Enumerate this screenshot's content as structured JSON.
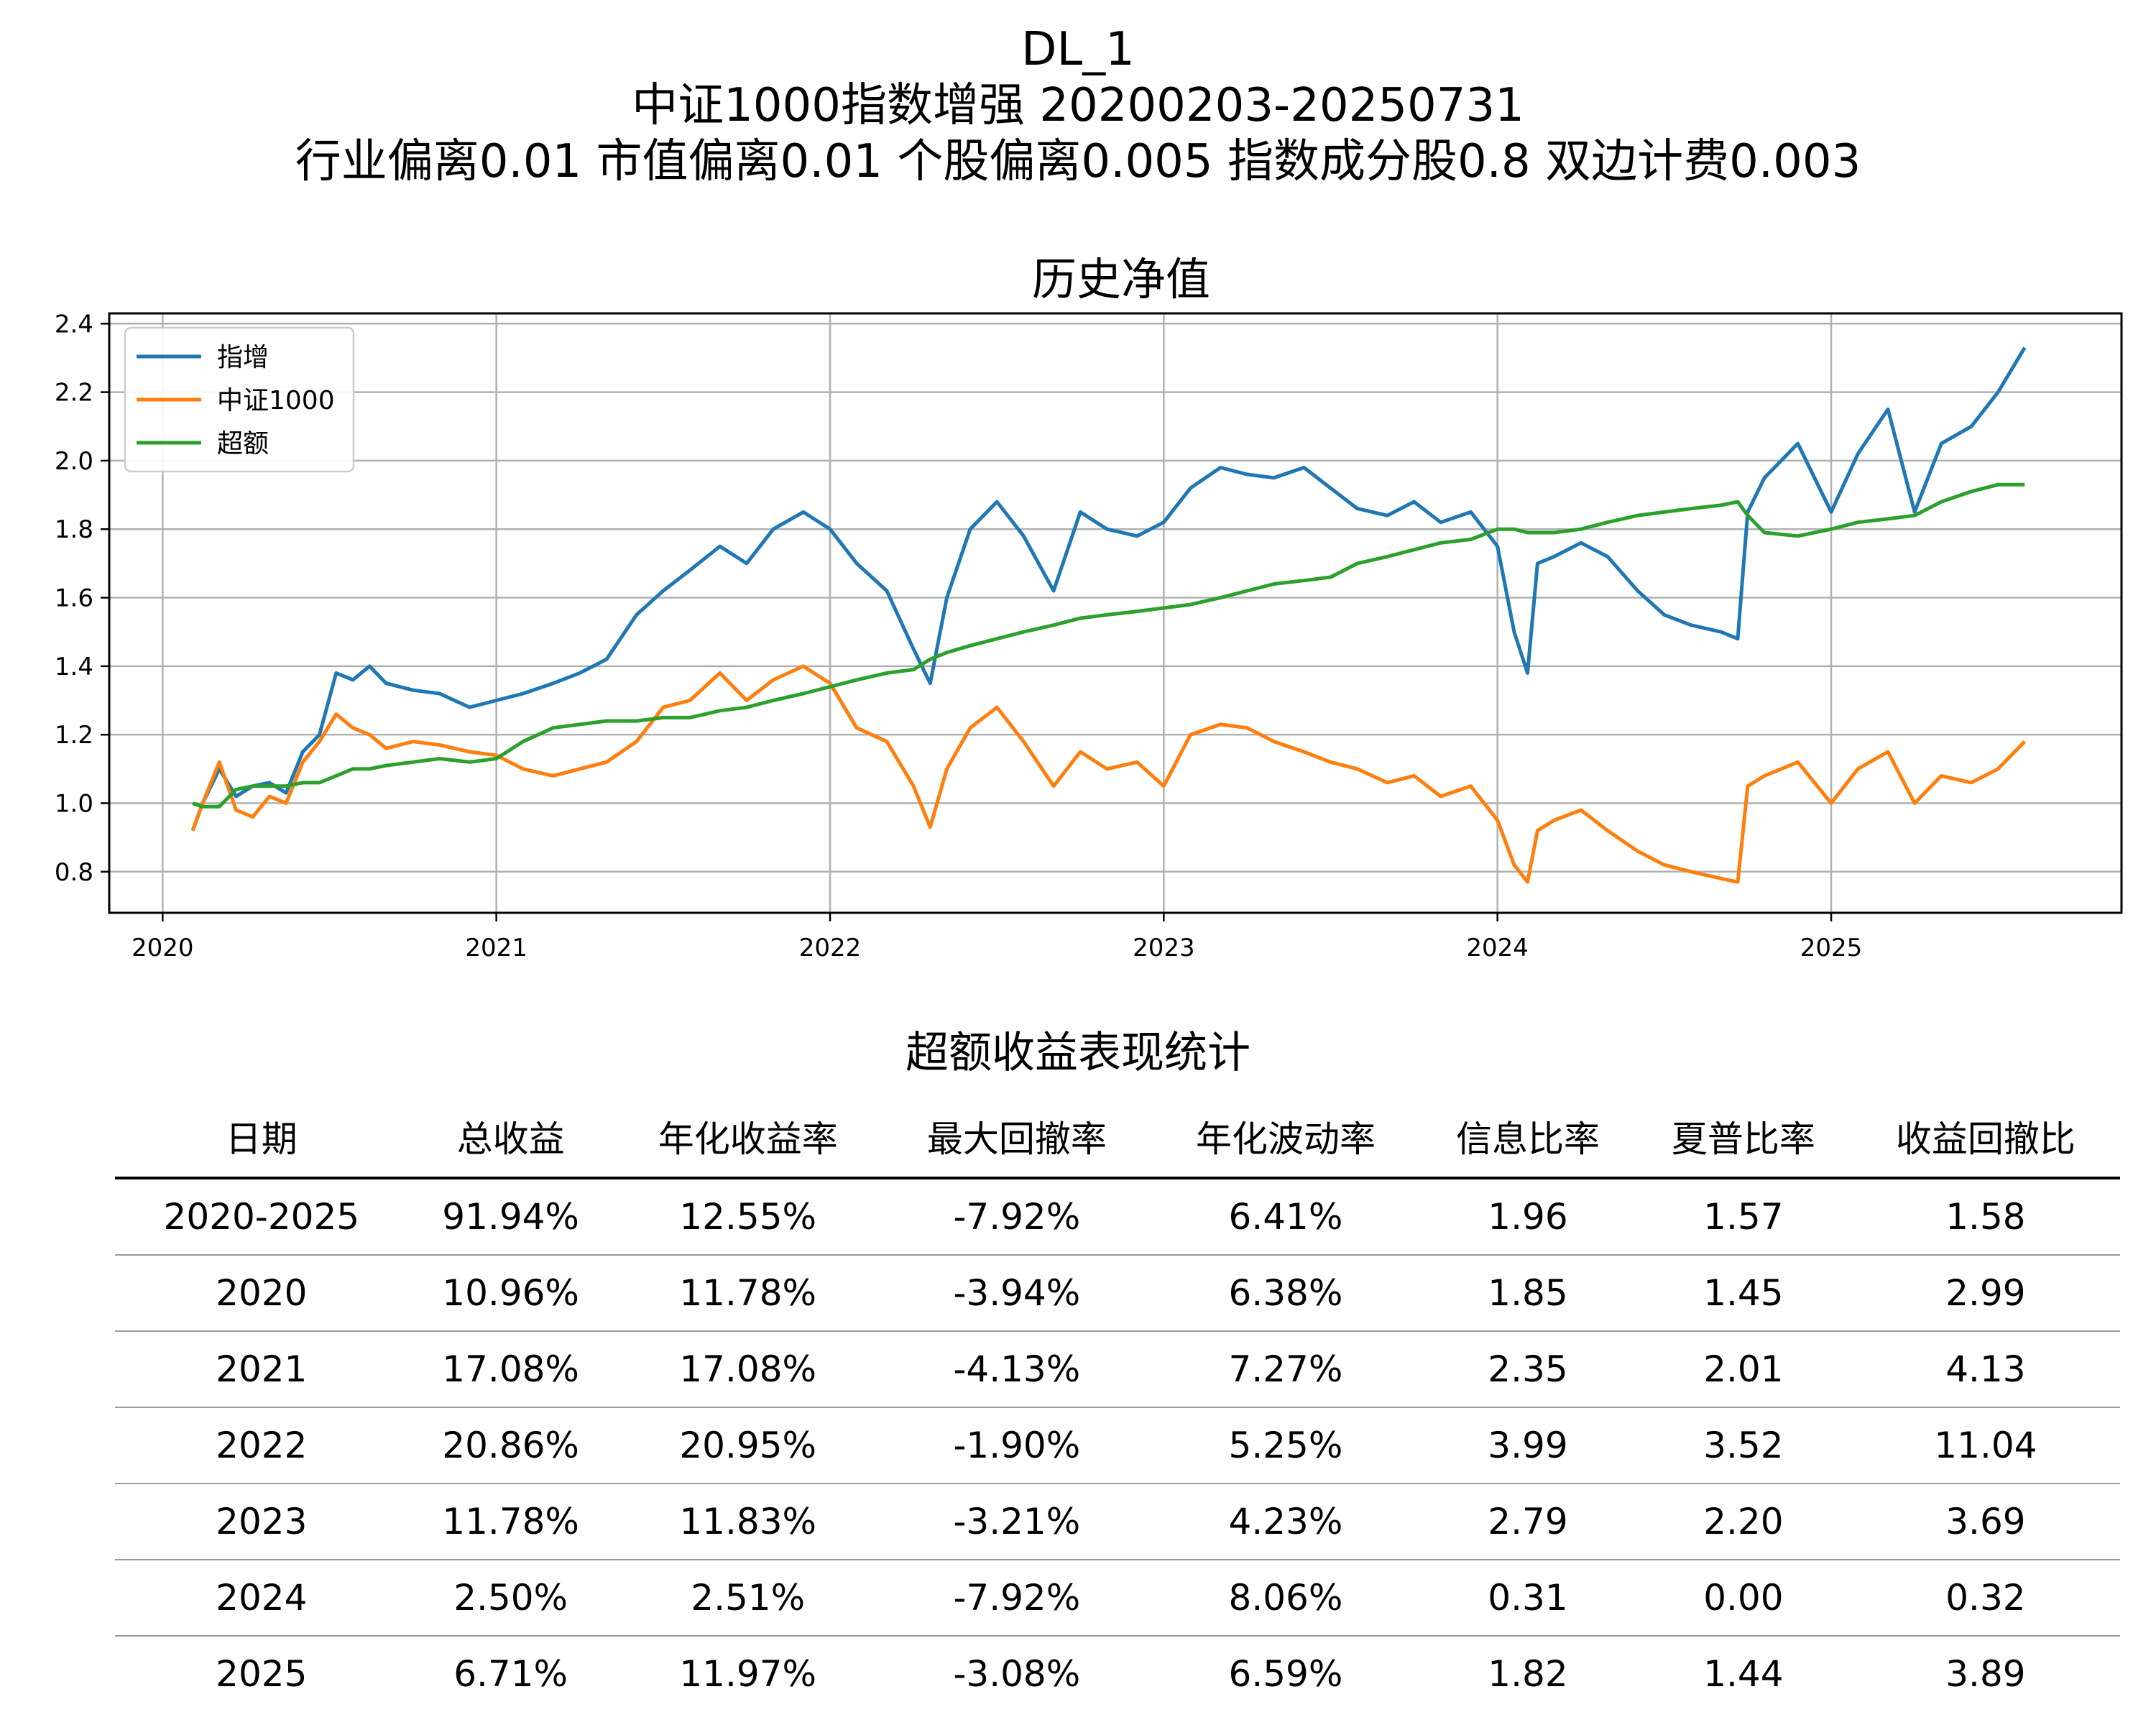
{
  "title": {
    "line1": "DL_1",
    "line2": "中证1000指数增强  20200203-20250731",
    "line3": "行业偏离0.01  市值偏离0.01  个股偏离0.005  指数成分股0.8  双边计费0.003"
  },
  "chart_data": {
    "type": "line",
    "title": "历史净值",
    "xlabel": "",
    "ylabel": "",
    "xlim": [
      2019.84,
      2025.87
    ],
    "ylim": [
      0.68,
      2.43
    ],
    "x_ticks": [
      "2020",
      "2021",
      "2022",
      "2023",
      "2024",
      "2025"
    ],
    "y_ticks": [
      "0.8",
      "1.0",
      "1.2",
      "1.4",
      "1.6",
      "1.8",
      "2.0",
      "2.2",
      "2.4"
    ],
    "grid": true,
    "legend_position": "top-left",
    "x": [
      2020.09,
      2020.12,
      2020.17,
      2020.22,
      2020.27,
      2020.32,
      2020.37,
      2020.42,
      2020.47,
      2020.52,
      2020.57,
      2020.62,
      2020.67,
      2020.75,
      2020.83,
      2020.92,
      2021.0,
      2021.08,
      2021.17,
      2021.25,
      2021.33,
      2021.42,
      2021.5,
      2021.58,
      2021.67,
      2021.75,
      2021.83,
      2021.92,
      2022.0,
      2022.08,
      2022.17,
      2022.25,
      2022.3,
      2022.35,
      2022.42,
      2022.5,
      2022.58,
      2022.67,
      2022.75,
      2022.83,
      2022.92,
      2023.0,
      2023.08,
      2023.17,
      2023.25,
      2023.33,
      2023.42,
      2023.5,
      2023.58,
      2023.67,
      2023.75,
      2023.83,
      2023.92,
      2024.0,
      2024.05,
      2024.09,
      2024.12,
      2024.17,
      2024.25,
      2024.33,
      2024.42,
      2024.5,
      2024.58,
      2024.67,
      2024.72,
      2024.75,
      2024.8,
      2024.9,
      2025.0,
      2025.08,
      2025.17,
      2025.25,
      2025.33,
      2025.42,
      2025.5,
      2025.58
    ],
    "series": [
      {
        "name": "指增",
        "color": "#1f77b4",
        "values": [
          0.92,
          1.0,
          1.1,
          1.02,
          1.05,
          1.06,
          1.03,
          1.15,
          1.2,
          1.38,
          1.36,
          1.4,
          1.35,
          1.33,
          1.32,
          1.28,
          1.3,
          1.32,
          1.35,
          1.38,
          1.42,
          1.55,
          1.62,
          1.68,
          1.75,
          1.7,
          1.8,
          1.85,
          1.8,
          1.7,
          1.62,
          1.45,
          1.35,
          1.6,
          1.8,
          1.88,
          1.78,
          1.62,
          1.85,
          1.8,
          1.78,
          1.82,
          1.92,
          1.98,
          1.96,
          1.95,
          1.98,
          1.92,
          1.86,
          1.84,
          1.88,
          1.82,
          1.85,
          1.75,
          1.5,
          1.38,
          1.7,
          1.72,
          1.76,
          1.72,
          1.62,
          1.55,
          1.52,
          1.5,
          1.48,
          1.85,
          1.95,
          2.05,
          1.85,
          2.02,
          2.15,
          1.85,
          2.05,
          2.1,
          2.2,
          2.33
        ]
      },
      {
        "name": "中证1000",
        "color": "#ff7f0e",
        "values": [
          0.92,
          1.0,
          1.12,
          0.98,
          0.96,
          1.02,
          1.0,
          1.12,
          1.18,
          1.26,
          1.22,
          1.2,
          1.16,
          1.18,
          1.17,
          1.15,
          1.14,
          1.1,
          1.08,
          1.1,
          1.12,
          1.18,
          1.28,
          1.3,
          1.38,
          1.3,
          1.36,
          1.4,
          1.35,
          1.22,
          1.18,
          1.05,
          0.93,
          1.1,
          1.22,
          1.28,
          1.18,
          1.05,
          1.15,
          1.1,
          1.12,
          1.05,
          1.2,
          1.23,
          1.22,
          1.18,
          1.15,
          1.12,
          1.1,
          1.06,
          1.08,
          1.02,
          1.05,
          0.95,
          0.82,
          0.77,
          0.92,
          0.95,
          0.98,
          0.92,
          0.86,
          0.82,
          0.8,
          0.78,
          0.77,
          1.05,
          1.08,
          1.12,
          1.0,
          1.1,
          1.15,
          1.0,
          1.08,
          1.06,
          1.1,
          1.18
        ]
      },
      {
        "name": "超额",
        "color": "#2ca02c",
        "values": [
          1.0,
          0.99,
          0.99,
          1.04,
          1.05,
          1.05,
          1.05,
          1.06,
          1.06,
          1.08,
          1.1,
          1.1,
          1.11,
          1.12,
          1.13,
          1.12,
          1.13,
          1.18,
          1.22,
          1.23,
          1.24,
          1.24,
          1.25,
          1.25,
          1.27,
          1.28,
          1.3,
          1.32,
          1.34,
          1.36,
          1.38,
          1.39,
          1.42,
          1.44,
          1.46,
          1.48,
          1.5,
          1.52,
          1.54,
          1.55,
          1.56,
          1.57,
          1.58,
          1.6,
          1.62,
          1.64,
          1.65,
          1.66,
          1.7,
          1.72,
          1.74,
          1.76,
          1.77,
          1.8,
          1.8,
          1.79,
          1.79,
          1.79,
          1.8,
          1.82,
          1.84,
          1.85,
          1.86,
          1.87,
          1.88,
          1.84,
          1.79,
          1.78,
          1.8,
          1.82,
          1.83,
          1.84,
          1.88,
          1.91,
          1.93,
          1.93
        ]
      }
    ]
  },
  "table": {
    "title": "超额收益表现统计",
    "headers": [
      "日期",
      "总收益",
      "年化收益率",
      "最大回撤率",
      "年化波动率",
      "信息比率",
      "夏普比率",
      "收益回撤比"
    ],
    "rows": [
      [
        "2020-2025",
        "91.94%",
        "12.55%",
        "-7.92%",
        "6.41%",
        "1.96",
        "1.57",
        "1.58"
      ],
      [
        "2020",
        "10.96%",
        "11.78%",
        "-3.94%",
        "6.38%",
        "1.85",
        "1.45",
        "2.99"
      ],
      [
        "2021",
        "17.08%",
        "17.08%",
        "-4.13%",
        "7.27%",
        "2.35",
        "2.01",
        "4.13"
      ],
      [
        "2022",
        "20.86%",
        "20.95%",
        "-1.90%",
        "5.25%",
        "3.99",
        "3.52",
        "11.04"
      ],
      [
        "2023",
        "11.78%",
        "11.83%",
        "-3.21%",
        "4.23%",
        "2.79",
        "2.20",
        "3.69"
      ],
      [
        "2024",
        "2.50%",
        "2.51%",
        "-7.92%",
        "8.06%",
        "0.31",
        "0.00",
        "0.32"
      ],
      [
        "2025",
        "6.71%",
        "11.97%",
        "-3.08%",
        "6.59%",
        "1.82",
        "1.44",
        "3.89"
      ]
    ]
  }
}
